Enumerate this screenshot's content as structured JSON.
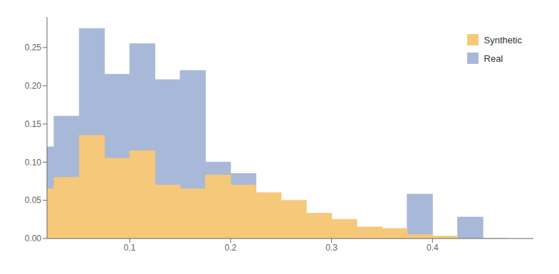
{
  "chart_data": {
    "type": "histogram",
    "bins": [
      0,
      0.025,
      0.05,
      0.075,
      0.1,
      0.125,
      0.15,
      0.175,
      0.2,
      0.225,
      0.25,
      0.275,
      0.3,
      0.325,
      0.35,
      0.375,
      0.4,
      0.425,
      0.45,
      0.475
    ],
    "series": [
      {
        "name": "Synthetic",
        "color": "#F5C87A",
        "values": [
          0.065,
          0.08,
          0.135,
          0.105,
          0.115,
          0.07,
          0.065,
          0.083,
          0.07,
          0.06,
          0.05,
          0.033,
          0.025,
          0.015,
          0.013,
          0.005,
          0.003,
          0.0,
          0.0
        ]
      },
      {
        "name": "Real",
        "color": "#A8B8D8",
        "values": [
          0.12,
          0.16,
          0.275,
          0.215,
          0.255,
          0.208,
          0.22,
          0.1,
          0.085,
          0.0,
          0.0,
          0.0,
          0.0,
          0.0,
          0.0,
          0.058,
          0.0,
          0.028,
          0.0
        ]
      }
    ],
    "xlim": [
      0.018,
      0.5
    ],
    "ylim": [
      0,
      0.29
    ],
    "xticks": [
      0.1,
      0.2,
      0.3,
      0.4
    ],
    "yticks": [
      {
        "value": 0,
        "label": "0.00"
      },
      0.05,
      {
        "value": 0.1,
        "label": "0.10"
      },
      0.15,
      {
        "value": 0.2,
        "label": "0.20"
      },
      0.25
    ],
    "legend": "upper right",
    "grid": false
  }
}
